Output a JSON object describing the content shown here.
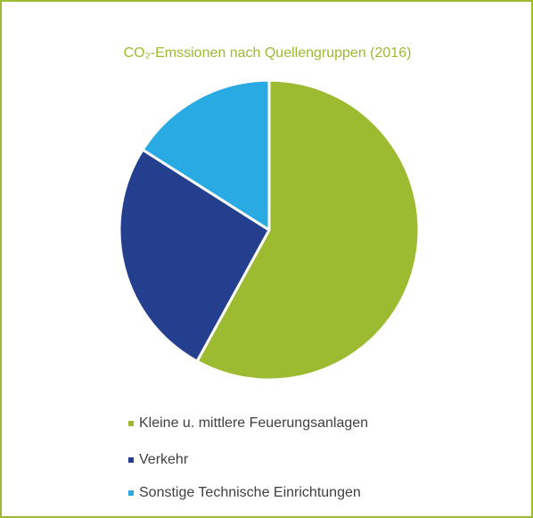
{
  "chart_data": {
    "type": "pie",
    "title": "CO₂-Emssionen nach Quellengruppen (2016)",
    "categories": [
      "Kleine u. mittlere Feuerungsanlagen",
      "Verkehr",
      "Sonstige Technische Einrichtungen"
    ],
    "values": [
      58,
      26,
      16
    ],
    "colors": [
      "#9cbb30",
      "#243f8e",
      "#2aaae2"
    ]
  }
}
